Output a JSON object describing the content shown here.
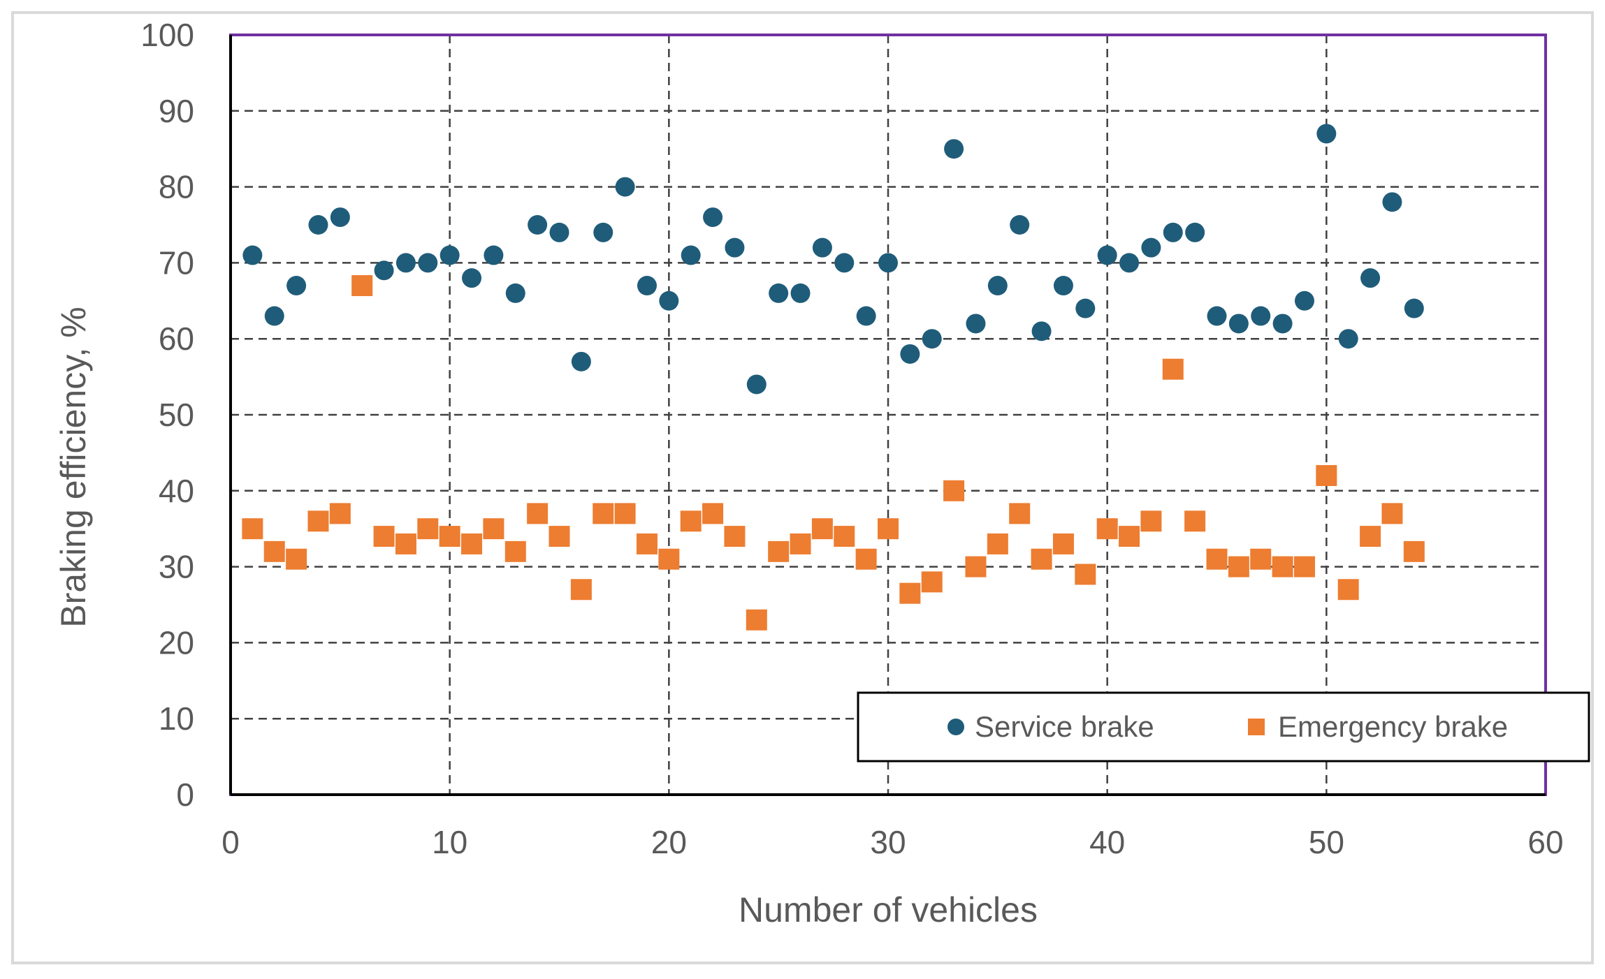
{
  "chart_data": {
    "type": "scatter",
    "xlabel": "Number of vehicles",
    "ylabel": "Braking efficiency, %",
    "xlim": [
      0,
      60
    ],
    "ylim": [
      0,
      100
    ],
    "xticks": [
      0,
      10,
      20,
      30,
      40,
      50,
      60
    ],
    "yticks": [
      0,
      10,
      20,
      30,
      40,
      50,
      60,
      70,
      80,
      90,
      100
    ],
    "grid": true,
    "legend_position": "bottom-right",
    "colors": {
      "service": "#1F5C7A",
      "emergency": "#ED7D31",
      "plot_border": "#7030A0",
      "grid": "#404040"
    },
    "series": [
      {
        "name": "Service brake",
        "marker": "circle",
        "x": [
          1,
          2,
          3,
          4,
          5,
          6,
          7,
          8,
          9,
          10,
          11,
          12,
          13,
          14,
          15,
          16,
          17,
          18,
          19,
          20,
          21,
          22,
          23,
          24,
          25,
          26,
          27,
          28,
          29,
          30,
          31,
          32,
          33,
          34,
          35,
          36,
          37,
          38,
          39,
          40,
          41,
          42,
          43,
          44,
          45,
          46,
          47,
          48,
          49,
          50,
          51,
          52,
          53,
          54
        ],
        "values": [
          71,
          63,
          67,
          75,
          76,
          67,
          69,
          70,
          70,
          71,
          68,
          71,
          66,
          75,
          74,
          57,
          74,
          80,
          67,
          65,
          71,
          76,
          72,
          54,
          66,
          66,
          72,
          70,
          63,
          70,
          58,
          60,
          85,
          62,
          67,
          75,
          61,
          67,
          64,
          71,
          70,
          72,
          74,
          74,
          63,
          62,
          63,
          62,
          65,
          87,
          60,
          68,
          78,
          64
        ]
      },
      {
        "name": "Emergency brake",
        "marker": "square",
        "x": [
          1,
          2,
          3,
          4,
          5,
          6,
          7,
          8,
          9,
          10,
          11,
          12,
          13,
          14,
          15,
          16,
          17,
          18,
          19,
          20,
          21,
          22,
          23,
          24,
          25,
          26,
          27,
          28,
          29,
          30,
          31,
          32,
          33,
          34,
          35,
          36,
          37,
          38,
          39,
          40,
          41,
          42,
          43,
          44,
          45,
          46,
          47,
          48,
          49,
          50,
          51,
          52,
          53,
          54
        ],
        "values": [
          35,
          32,
          31,
          36,
          37,
          67,
          34,
          33,
          35,
          34,
          33,
          35,
          32,
          37,
          34,
          27,
          37,
          37,
          33,
          31,
          36,
          37,
          34,
          23,
          32,
          33,
          35,
          34,
          31,
          35,
          26.5,
          28,
          40,
          30,
          33,
          37,
          31,
          33,
          29,
          35,
          34,
          36,
          56,
          36,
          31,
          30,
          31,
          30,
          30,
          42,
          27,
          34,
          37,
          32
        ]
      }
    ]
  }
}
